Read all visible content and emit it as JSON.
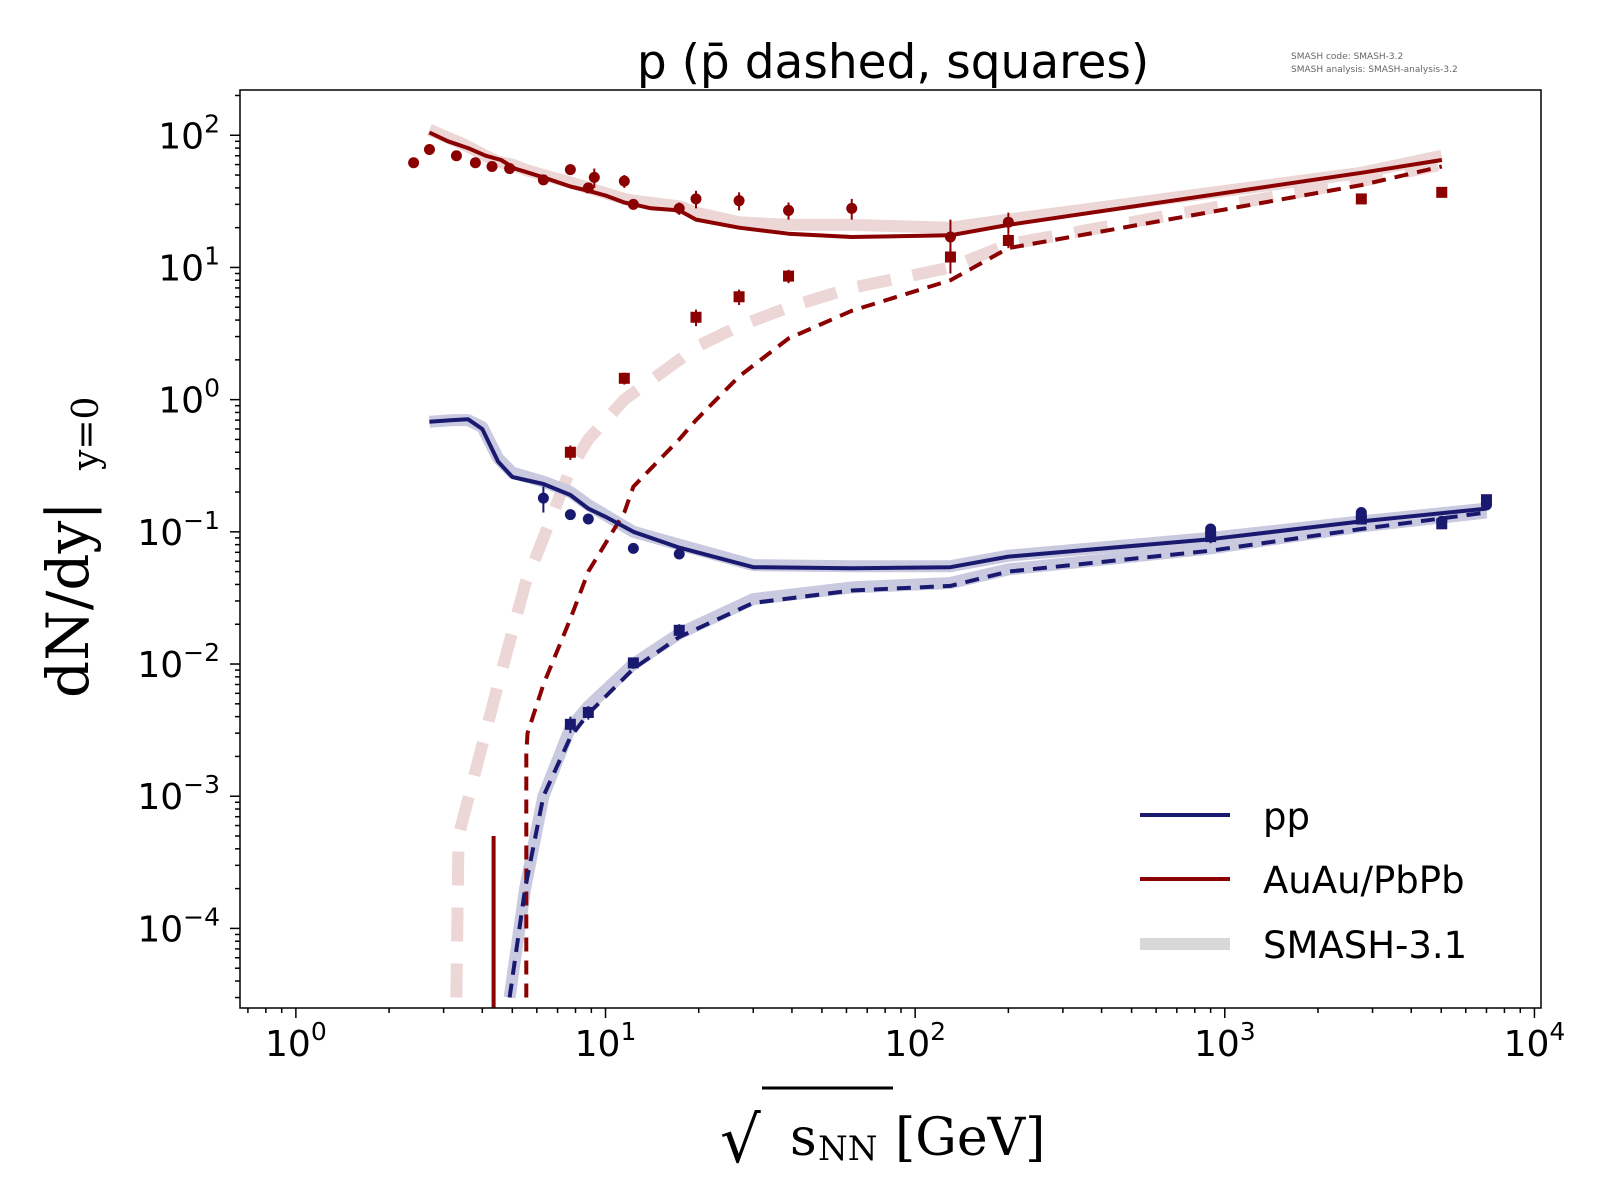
{
  "chart_data": {
    "type": "line",
    "title": "p (p̄ dashed, squares)",
    "annotation_lines": [
      "SMASH code:      SMASH-3.2",
      "SMASH analysis: SMASH-analysis-3.2"
    ],
    "xlabel": "√sNN [GeV]",
    "xlabel_parts": {
      "root": "√",
      "main": "s",
      "sub": "NN",
      "unit": "[GeV]"
    },
    "ylabel": "dN/dy|y=0",
    "ylabel_parts": {
      "main": "dN/dy|",
      "sub": "y=0"
    },
    "x_scale": "log",
    "y_scale": "log",
    "xlim": [
      0.66,
      10500
    ],
    "ylim": [
      2.5e-05,
      220
    ],
    "x_ticks": [
      {
        "value": 1,
        "base": "10",
        "exp": "0"
      },
      {
        "value": 10,
        "base": "10",
        "exp": "1"
      },
      {
        "value": 100,
        "base": "10",
        "exp": "2"
      },
      {
        "value": 1000,
        "base": "10",
        "exp": "3"
      },
      {
        "value": 10000,
        "base": "10",
        "exp": "4"
      }
    ],
    "y_ticks": [
      {
        "value": 100,
        "base": "10",
        "exp": "2"
      },
      {
        "value": 10,
        "base": "10",
        "exp": "1"
      },
      {
        "value": 1,
        "base": "10",
        "exp": "0"
      },
      {
        "value": 0.1,
        "base": "10",
        "exp": "−1"
      },
      {
        "value": 0.01,
        "base": "10",
        "exp": "−2"
      },
      {
        "value": 0.001,
        "base": "10",
        "exp": "−3"
      },
      {
        "value": 0.0001,
        "base": "10",
        "exp": "−4"
      }
    ],
    "grid": false,
    "legend_position": "bottom-right",
    "legend": [
      {
        "label": "pp",
        "color": "#191970",
        "style": "solid"
      },
      {
        "label": "AuAu/PbPb",
        "color": "#8b0000",
        "style": "solid"
      },
      {
        "label": "SMASH-3.1",
        "color": "#d8d8d8",
        "style": "thick"
      }
    ],
    "colors": {
      "pp": "#191970",
      "aa": "#8b0000",
      "ref_pp": "#c9c9e0",
      "ref_aa": "#ecd6d6"
    },
    "series": [
      {
        "group": "SMASH-3.1",
        "kind": "ref_aa_p",
        "style": "solid",
        "x": [
          2.7,
          3.5,
          4.0,
          4.5,
          5.0,
          5.5,
          6.3,
          7.7,
          8.8,
          11.5,
          12.3,
          17.3,
          19.6,
          27,
          39,
          62.4,
          130,
          200,
          2760,
          5020
        ],
        "y": [
          110,
          85,
          72,
          63,
          60,
          55,
          50,
          44,
          40,
          33,
          32,
          29,
          26,
          22,
          21,
          21,
          20,
          23,
          52,
          70
        ]
      },
      {
        "group": "SMASH-3.1",
        "kind": "ref_aa_pbar",
        "style": "dashed",
        "x": [
          3.3,
          3.35,
          4.5,
          5.5,
          6.3,
          7.7,
          8.8,
          11.5,
          17.3,
          19.6,
          27,
          39,
          62.4,
          130,
          200,
          2760,
          5020
        ],
        "y": [
          3e-05,
          0.0005,
          0.007,
          0.04,
          0.09,
          0.3,
          0.5,
          1.0,
          2.0,
          2.5,
          3.6,
          5.0,
          7.0,
          10,
          15,
          45,
          60
        ]
      },
      {
        "group": "SMASH-3.1",
        "kind": "ref_pp_p",
        "style": "solid",
        "x": [
          2.7,
          3.2,
          3.6,
          4.0,
          4.5,
          5.0,
          6.3,
          7.7,
          8.8,
          12.3,
          17.3,
          30,
          62.4,
          130,
          200,
          900,
          2760,
          7000
        ],
        "y": [
          0.68,
          0.7,
          0.7,
          0.62,
          0.36,
          0.28,
          0.24,
          0.2,
          0.16,
          0.1,
          0.08,
          0.056,
          0.055,
          0.055,
          0.066,
          0.09,
          0.12,
          0.15
        ]
      },
      {
        "group": "SMASH-3.1",
        "kind": "ref_pp_pbar",
        "style": "solid",
        "x": [
          4.9,
          5.5,
          6.3,
          7.7,
          8.8,
          12.3,
          17.3,
          30,
          62.4,
          130,
          200,
          900,
          2760,
          7000
        ],
        "y": [
          3e-05,
          0.0002,
          0.001,
          0.0033,
          0.0048,
          0.01,
          0.017,
          0.031,
          0.038,
          0.041,
          0.052,
          0.075,
          0.11,
          0.14
        ]
      },
      {
        "group": "AuAu/PbPb",
        "kind": "aa_p_model",
        "style": "solid",
        "x": [
          2.7,
          3.1,
          3.6,
          4.1,
          4.6,
          5.1,
          5.5,
          6.3,
          7.7,
          8.8,
          10,
          11.5,
          12.3,
          14,
          17.3,
          19.6,
          27,
          39,
          62.4,
          130,
          200,
          2760,
          5020
        ],
        "y": [
          105,
          90,
          80,
          70,
          65,
          56,
          53,
          48,
          41,
          38,
          35,
          31,
          30,
          28,
          27,
          23,
          20,
          18,
          17,
          17.5,
          21,
          52,
          65
        ]
      },
      {
        "group": "AuAu/PbPb",
        "kind": "aa_p_cut",
        "style": "solid",
        "x": [
          4.35,
          4.35
        ],
        "y": [
          2e-05,
          0.0005
        ]
      },
      {
        "group": "AuAu/PbPb",
        "kind": "aa_pbar_model",
        "style": "dashed",
        "x": [
          5.55,
          5.55,
          5.6,
          6.3,
          7.7,
          8.8,
          11.5,
          12.3,
          17.3,
          19.6,
          27,
          39,
          62.4,
          130,
          200,
          2760,
          5020
        ],
        "y": [
          3e-05,
          0.0021,
          0.003,
          0.007,
          0.022,
          0.05,
          0.14,
          0.22,
          0.5,
          0.7,
          1.5,
          2.9,
          4.7,
          8,
          14,
          42,
          58
        ]
      },
      {
        "group": "pp",
        "kind": "pp_p_model",
        "style": "solid",
        "x": [
          2.7,
          3.2,
          3.6,
          4.0,
          4.5,
          5.0,
          6.3,
          7.7,
          8.8,
          10,
          12.3,
          17.3,
          30,
          62.4,
          130,
          200,
          900,
          2760,
          7000
        ],
        "y": [
          0.68,
          0.7,
          0.71,
          0.6,
          0.34,
          0.26,
          0.23,
          0.19,
          0.15,
          0.13,
          0.1,
          0.076,
          0.054,
          0.053,
          0.054,
          0.065,
          0.088,
          0.12,
          0.15
        ]
      },
      {
        "group": "pp",
        "kind": "pp_pbar_model",
        "style": "dashed",
        "x": [
          4.9,
          5.5,
          6.3,
          7.7,
          8.8,
          12.3,
          17.3,
          30,
          62.4,
          130,
          200,
          900,
          2760,
          7000
        ],
        "y": [
          3e-05,
          0.0002,
          0.001,
          0.0028,
          0.0042,
          0.0092,
          0.016,
          0.029,
          0.036,
          0.039,
          0.05,
          0.072,
          0.105,
          0.14
        ]
      }
    ],
    "data_points": [
      {
        "group": "AuAu/PbPb",
        "particle": "p",
        "marker": "circle",
        "x": [
          2.4,
          2.7,
          3.3,
          3.8,
          4.3,
          4.9,
          6.3,
          7.7,
          8.8,
          9.2,
          11.5,
          12.3,
          17.3,
          19.6,
          27,
          39,
          62.4,
          130,
          200
        ],
        "y": [
          62,
          78,
          70,
          62,
          58,
          56,
          46,
          55,
          40,
          48,
          45,
          30,
          28,
          33,
          32,
          27,
          28,
          17,
          22
        ],
        "err": [
          0,
          0,
          0,
          0,
          0,
          0,
          0,
          0,
          0,
          8,
          5,
          0,
          3,
          5,
          5,
          4,
          5,
          6,
          4
        ]
      },
      {
        "group": "AuAu/PbPb",
        "particle": "pbar",
        "marker": "square",
        "x": [
          7.7,
          11.5,
          19.6,
          27,
          39,
          130,
          200,
          2760,
          5020
        ],
        "y": [
          0.4,
          1.45,
          4.2,
          6.0,
          8.6,
          12,
          16,
          33,
          37
        ],
        "err": [
          0.05,
          0.15,
          0.6,
          0.8,
          1.0,
          3,
          2,
          2,
          2
        ]
      },
      {
        "group": "pp",
        "particle": "p",
        "marker": "circle",
        "x": [
          6.3,
          7.7,
          8.8,
          12.3,
          17.3,
          900,
          900,
          2760,
          2760,
          5020,
          7000
        ],
        "y": [
          0.18,
          0.135,
          0.125,
          0.075,
          0.068,
          0.1,
          0.105,
          0.14,
          0.13,
          0.12,
          0.16
        ],
        "err": [
          0.04,
          0,
          0,
          0,
          0,
          0.01,
          0,
          0.01,
          0,
          0,
          0
        ]
      },
      {
        "group": "pp",
        "particle": "pbar",
        "marker": "square",
        "x": [
          7.7,
          8.8,
          12.3,
          17.3,
          900,
          2760,
          5020,
          7000
        ],
        "y": [
          0.0035,
          0.0043,
          0.0102,
          0.018,
          0.092,
          0.125,
          0.115,
          0.175
        ],
        "err": [
          0.0005,
          0.0005,
          0.001,
          0.002,
          0.01,
          0.01,
          0.01,
          0.01
        ]
      }
    ]
  }
}
